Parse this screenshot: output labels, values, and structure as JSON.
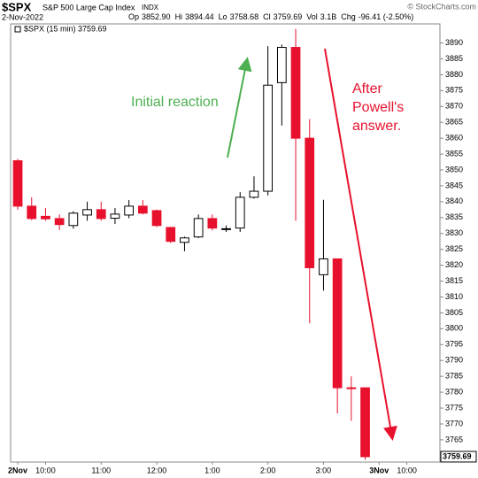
{
  "chart_data": {
    "type": "candlestick",
    "title": "$SPX",
    "subtitle": "S&P 500 Large Cap Index",
    "exchange": "INDX",
    "date": "2-Nov-2022",
    "copyright": "© StockCharts.com",
    "quote": [
      {
        "label": "Op",
        "value": "3852.90"
      },
      {
        "label": "Hi",
        "value": "3894.44"
      },
      {
        "label": "Lo",
        "value": "3758.68"
      },
      {
        "label": "Cl",
        "value": "3759.69"
      },
      {
        "label": "Vol",
        "value": "3.1B"
      },
      {
        "label": "Chg",
        "value": "-96.41 (-2.50%)"
      }
    ],
    "categories": [
      "2Nov",
      null,
      "10:00",
      null,
      null,
      null,
      "11:00",
      null,
      null,
      null,
      "12:00",
      null,
      null,
      null,
      "1:00",
      null,
      null,
      null,
      "2:00",
      null,
      null,
      null,
      "3:00",
      null,
      null,
      null,
      "3Nov",
      null,
      "10:00",
      null
    ],
    "series": [
      {
        "name": "$SPX (15 min) 3759.69",
        "up_color": "#000000",
        "down_color": "#e8112d",
        "open": [
          3852.9,
          3838.6,
          3835.4,
          3834.7,
          3832.5,
          3835.8,
          3837.5,
          3834.8,
          3835.8,
          3838.6,
          3837.2,
          3831.9,
          3827.2,
          3828.9,
          3834.7,
          3831.4,
          3831.7,
          3841.4,
          3843.3,
          3877.5,
          3888.6,
          3860.0,
          3817.0,
          3822.0,
          3781.4,
          3781.4,
          null,
          null,
          null,
          null
        ],
        "high": [
          3853.5,
          3841.4,
          3838.0,
          3836.0,
          3837.0,
          3840.0,
          3840.0,
          3838.0,
          3840.5,
          3840.5,
          3837.5,
          3832.0,
          3829.0,
          3836.0,
          3836.0,
          3832.5,
          3843.0,
          3848.0,
          3889.0,
          3889.5,
          3894.44,
          3866.0,
          3840.6,
          3822.0,
          3785.0,
          3781.5,
          null,
          null,
          null,
          null
        ],
        "low": [
          3837.5,
          3834.2,
          3834.0,
          3831.1,
          3831.5,
          3834.0,
          3834.0,
          3833.0,
          3834.8,
          3836.0,
          3832.0,
          3827.0,
          3824.4,
          3828.5,
          3831.0,
          3830.5,
          3830.5,
          3841.0,
          3842.0,
          3864.0,
          3834.0,
          3801.7,
          3812.0,
          3773.3,
          3771.0,
          3758.68,
          null,
          null,
          null,
          null
        ],
        "close": [
          3838.6,
          3834.7,
          3834.6,
          3832.8,
          3836.4,
          3837.5,
          3834.7,
          3836.1,
          3838.6,
          3836.4,
          3832.5,
          3827.5,
          3828.6,
          3834.7,
          3831.7,
          3831.5,
          3841.4,
          3843.3,
          3876.7,
          3888.6,
          3860.0,
          3819.2,
          3822.0,
          3781.4,
          3781.3,
          3759.69,
          null,
          null,
          null,
          null
        ]
      }
    ],
    "last_price": 3759.69,
    "ylim": [
      3758,
      3896
    ],
    "yticks": [
      3765,
      3770,
      3775,
      3780,
      3785,
      3790,
      3795,
      3800,
      3805,
      3810,
      3815,
      3820,
      3825,
      3830,
      3835,
      3840,
      3845,
      3850,
      3855,
      3860,
      3865,
      3870,
      3875,
      3880,
      3885,
      3890
    ],
    "grid": false,
    "annotations": [
      {
        "text": [
          "Initial reaction"
        ],
        "color": "#4caf50"
      },
      {
        "text": [
          "After",
          "Powell's",
          "answer."
        ],
        "color": "#e8112d"
      }
    ]
  }
}
